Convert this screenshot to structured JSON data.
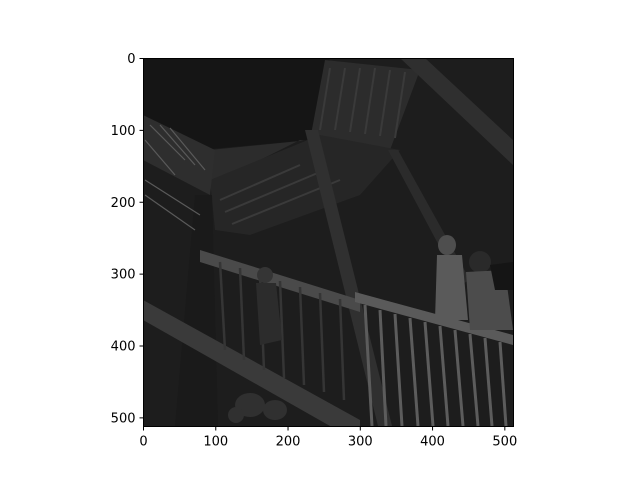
{
  "chart_data": {
    "type": "heatmap",
    "description_visible": "grayscale image rendered on axes",
    "title": "",
    "xlabel": "",
    "ylabel": "",
    "xlim": [
      0,
      512
    ],
    "ylim": [
      512,
      0
    ],
    "x_ticks": [
      0,
      100,
      200,
      300,
      400,
      500
    ],
    "y_ticks": [
      0,
      100,
      200,
      300,
      400,
      500
    ],
    "grid": false,
    "colormap": "gray",
    "image_content": "dark low-contrast photograph of an outdoor staircase with railings and people walking"
  },
  "colors": {
    "axes_frame": "#000000",
    "image_base": "#242424",
    "image_dark": "#141414",
    "image_mid": "#3c3c3c",
    "image_light": "#6e6e6e"
  }
}
